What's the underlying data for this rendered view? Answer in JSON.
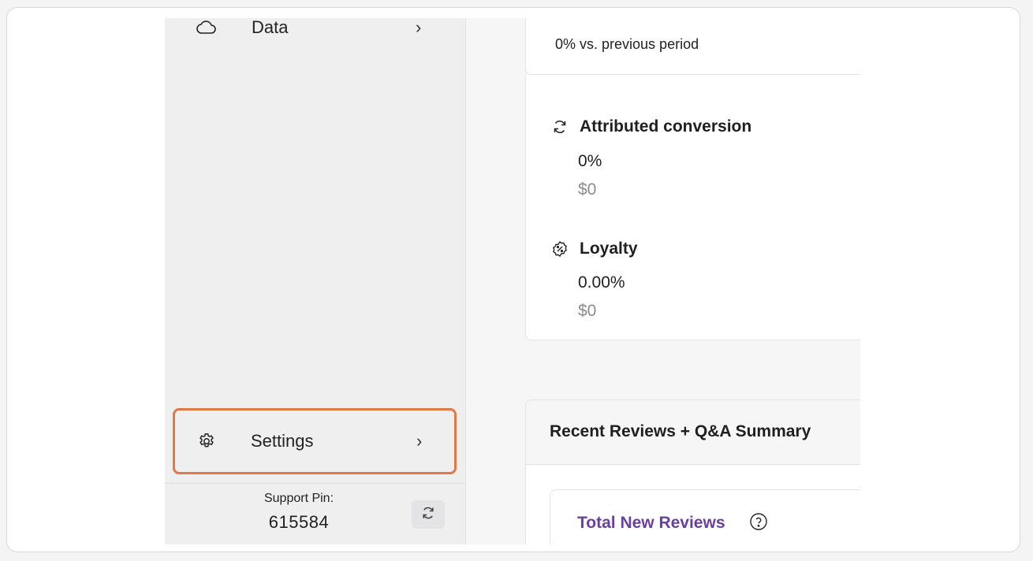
{
  "sidebar": {
    "data_item": {
      "label": "Data",
      "icon": "cloud-icon",
      "chevron": "›"
    },
    "settings_item": {
      "label": "Settings",
      "icon": "gear-icon",
      "chevron": "›",
      "highlight_color": "#e07a45"
    },
    "support": {
      "title": "Support Pin:",
      "pin": "615584",
      "refresh_icon": "refresh-icon"
    }
  },
  "main": {
    "top_card": {
      "comparison": "0% vs. previous period"
    },
    "metrics": [
      {
        "icon": "sync-icon",
        "title": "Attributed conversion",
        "value": "0%",
        "amount": "$0"
      },
      {
        "icon": "percent-badge-icon",
        "title": "Loyalty",
        "value": "0.00%",
        "amount": "$0"
      }
    ],
    "reviews": {
      "title": "Recent Reviews + Q&A Summary",
      "total_new_reviews": {
        "label": "Total New Reviews",
        "label_color": "#6a3fa0",
        "help_icon": "question-circle-icon"
      }
    }
  }
}
